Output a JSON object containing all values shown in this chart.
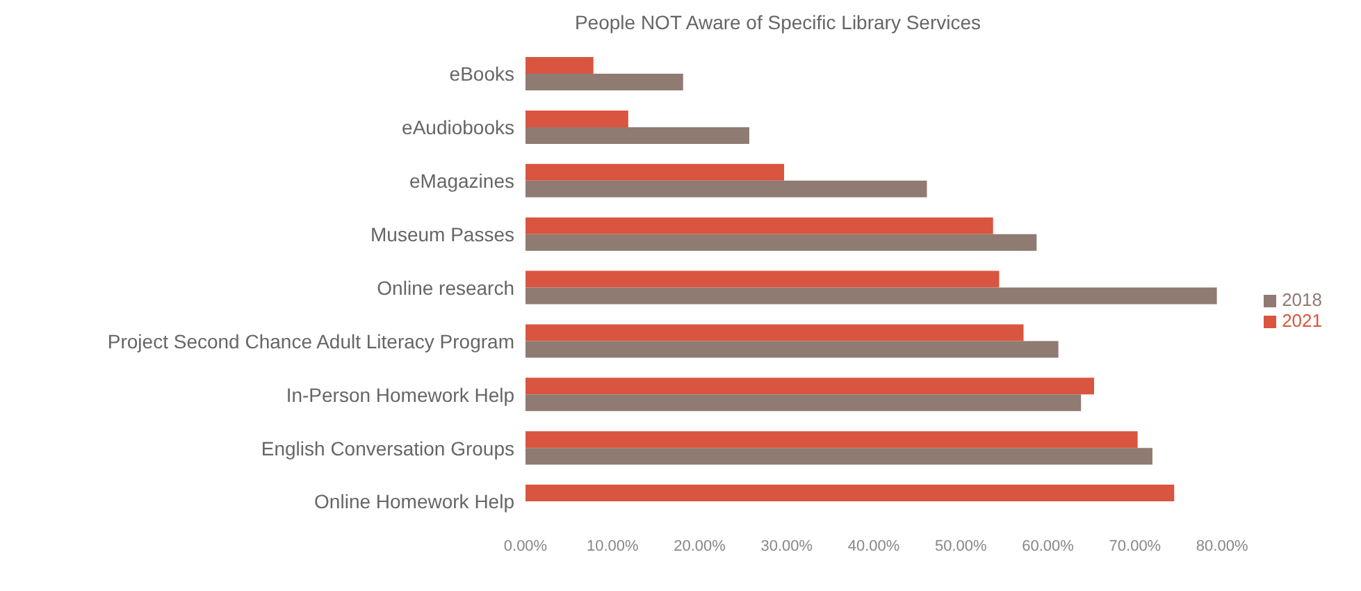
{
  "chart_data": {
    "type": "bar",
    "orientation": "horizontal",
    "title": "People NOT Aware of Specific Library Services",
    "categories": [
      "eBooks",
      "eAudiobooks",
      "eMagazines",
      "Museum Passes",
      "Online research",
      "Project Second Chance Adult Literacy Program",
      "In-Person Homework Help",
      "English Conversation Groups",
      "Online Homework Help"
    ],
    "series": [
      {
        "name": "2021",
        "color": "#d9553f",
        "values": [
          7.8,
          11.8,
          29.7,
          53.7,
          54.4,
          57.2,
          65.3,
          70.3,
          74.5
        ]
      },
      {
        "name": "2018",
        "color": "#8f7b72",
        "values": [
          18.1,
          25.7,
          46.1,
          58.7,
          79.4,
          61.2,
          63.8,
          72.0,
          null
        ]
      }
    ],
    "xlim": [
      0,
      80
    ],
    "xticks": [
      {
        "value": 0,
        "label": "0.00%"
      },
      {
        "value": 10,
        "label": "10.00%"
      },
      {
        "value": 20,
        "label": "20.00%"
      },
      {
        "value": 30,
        "label": "30.00%"
      },
      {
        "value": 40,
        "label": "40.00%"
      },
      {
        "value": 50,
        "label": "50.00%"
      },
      {
        "value": 60,
        "label": "60.00%"
      },
      {
        "value": 70,
        "label": "70.00%"
      },
      {
        "value": 80,
        "label": "80.00%"
      }
    ],
    "grid": false,
    "legend": "right"
  }
}
